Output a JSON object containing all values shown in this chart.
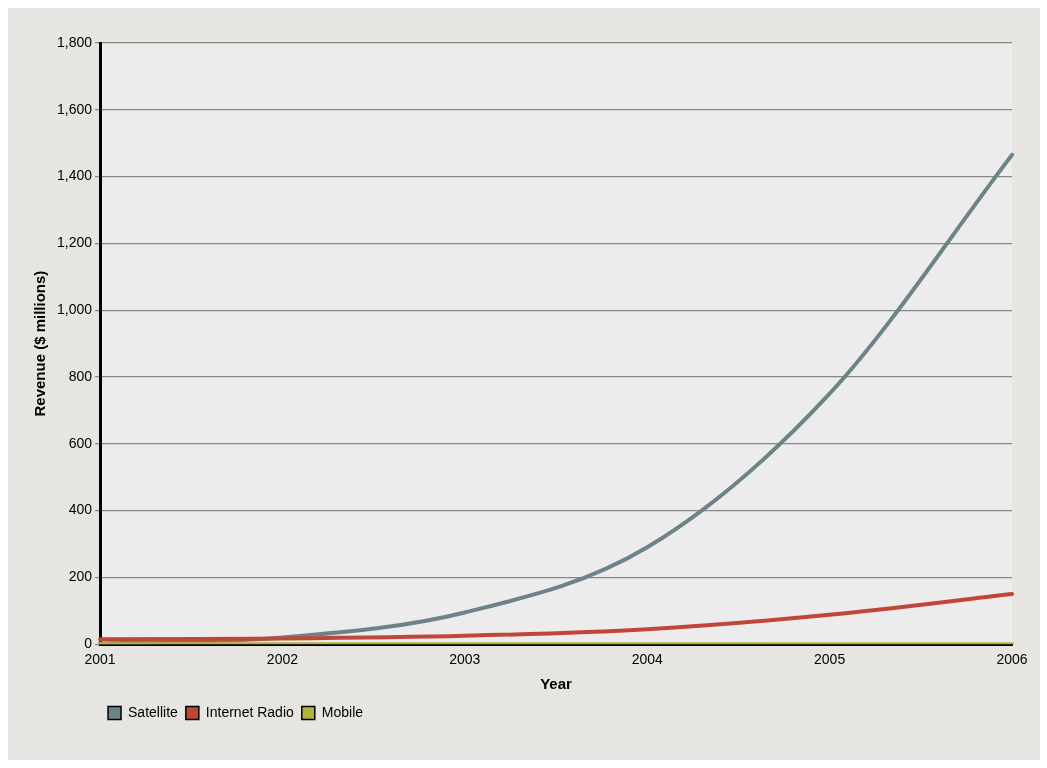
{
  "chart_data": {
    "type": "line",
    "xlabel": "Year",
    "ylabel": "Revenue ($ millions)",
    "categories": [
      "2001",
      "2002",
      "2003",
      "2004",
      "2005",
      "2006"
    ],
    "series": [
      {
        "name": "Satellite",
        "color": "#6e8388",
        "values": [
          2,
          20,
          95,
          290,
          750,
          1465
        ]
      },
      {
        "name": "Internet Radio",
        "color": "#c0463a",
        "values": [
          15,
          17,
          25,
          45,
          88,
          150
        ]
      },
      {
        "name": "Mobile",
        "color": "#b2b23a",
        "values": [
          0,
          0,
          0,
          0,
          0,
          0
        ]
      }
    ],
    "ylim": [
      0,
      1800
    ],
    "yticks": [
      0,
      200,
      400,
      600,
      800,
      {
        "value": 1000,
        "label": "1,000"
      },
      {
        "value": 1200,
        "label": "1,200"
      },
      {
        "value": 1400,
        "label": "1,400"
      },
      {
        "value": 1600,
        "label": "1,600"
      },
      {
        "value": 1800,
        "label": "1,800"
      }
    ],
    "grid": "y",
    "legend": "bottom left",
    "marker": "none",
    "line_style": "solid"
  }
}
